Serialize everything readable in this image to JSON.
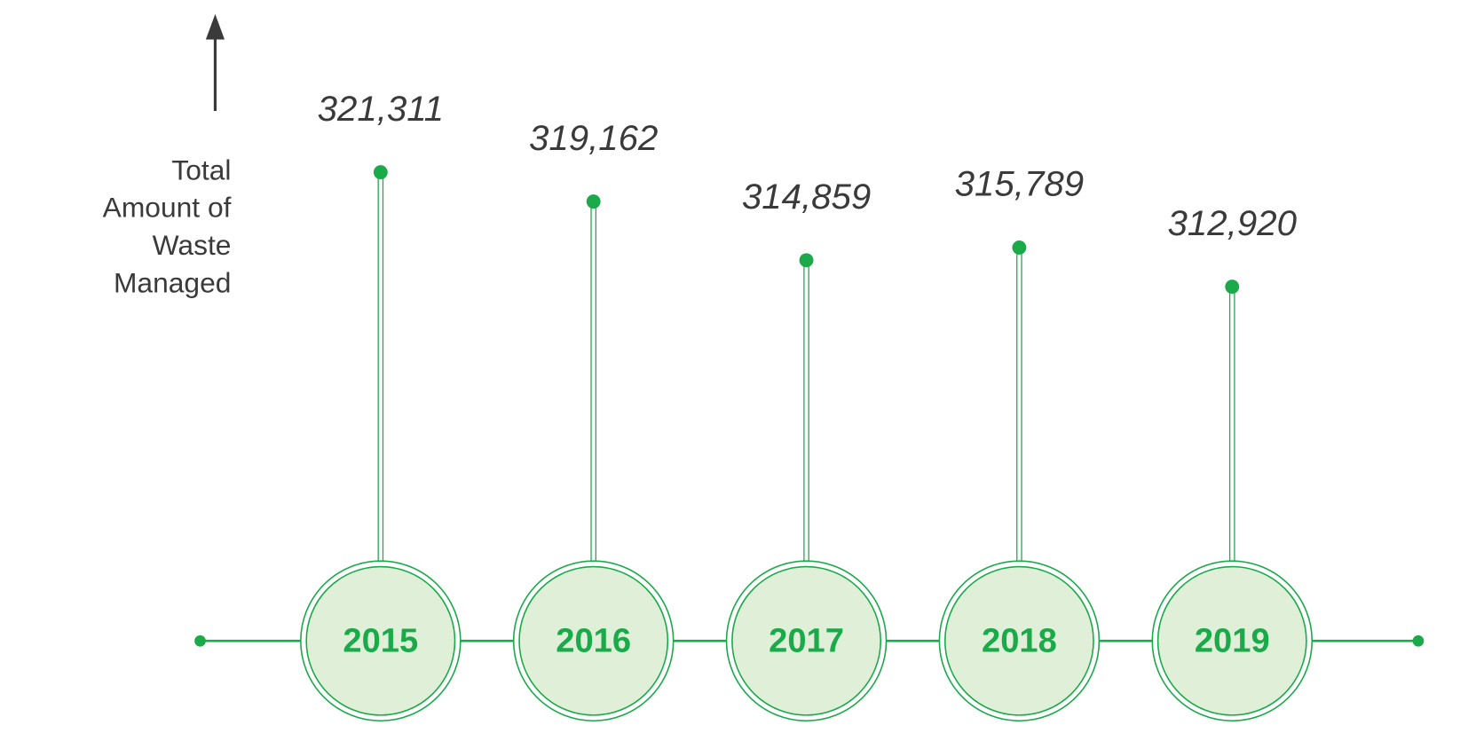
{
  "chart_data": {
    "type": "lollipop",
    "y_label": "Total Amount of Waste Managed",
    "categories": [
      "2015",
      "2016",
      "2017",
      "2018",
      "2019"
    ],
    "values": [
      321311,
      319162,
      314859,
      315789,
      312920
    ],
    "value_labels": [
      "321,311",
      "319,162",
      "314,859",
      "315,789",
      "312,920"
    ],
    "ylim": [
      293300,
      332900
    ],
    "color": "#1aaa4a"
  }
}
